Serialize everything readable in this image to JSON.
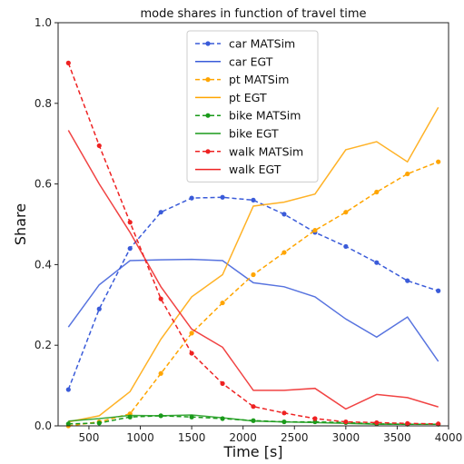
{
  "chart_data": {
    "type": "line",
    "title": "mode shares in function of travel time",
    "xlabel": "Time [s]",
    "ylabel": "Share",
    "xlim": [
      200,
      4000
    ],
    "ylim": [
      0,
      1.0
    ],
    "xticks": [
      500,
      1000,
      1500,
      2000,
      2500,
      3000,
      3500,
      4000
    ],
    "yticks": [
      0.0,
      0.2,
      0.4,
      0.6,
      0.8,
      1.0
    ],
    "x": [
      300,
      600,
      900,
      1200,
      1500,
      1800,
      2100,
      2400,
      2700,
      3000,
      3300,
      3600,
      3900
    ],
    "grid": false,
    "legend_position": "top-center",
    "series": [
      {
        "name": "car MATSim",
        "color": "#3a5bd9",
        "style": "dashed-markers",
        "values": [
          0.09,
          0.29,
          0.44,
          0.53,
          0.565,
          0.567,
          0.56,
          0.525,
          0.48,
          0.445,
          0.405,
          0.36,
          0.335
        ]
      },
      {
        "name": "car EGT",
        "color": "#3a5bd9",
        "style": "solid",
        "values": [
          0.245,
          0.35,
          0.41,
          0.412,
          0.413,
          0.41,
          0.355,
          0.345,
          0.32,
          0.265,
          0.22,
          0.27,
          0.16
        ]
      },
      {
        "name": "pt MATSim",
        "color": "#ffa500",
        "style": "dashed-markers",
        "values": [
          0.0,
          0.01,
          0.03,
          0.13,
          0.23,
          0.305,
          0.375,
          0.43,
          0.485,
          0.53,
          0.58,
          0.625,
          0.655
        ]
      },
      {
        "name": "pt EGT",
        "color": "#ffa500",
        "style": "solid",
        "values": [
          0.01,
          0.025,
          0.085,
          0.215,
          0.32,
          0.375,
          0.545,
          0.555,
          0.575,
          0.685,
          0.705,
          0.655,
          0.79
        ]
      },
      {
        "name": "bike MATSim",
        "color": "#1a9a1a",
        "style": "dashed-markers",
        "values": [
          0.005,
          0.007,
          0.022,
          0.025,
          0.022,
          0.018,
          0.013,
          0.01,
          0.01,
          0.008,
          0.005,
          0.004,
          0.004
        ]
      },
      {
        "name": "bike EGT",
        "color": "#1a9a1a",
        "style": "solid",
        "values": [
          0.012,
          0.018,
          0.026,
          0.025,
          0.027,
          0.02,
          0.012,
          0.01,
          0.008,
          0.006,
          0.004,
          0.004,
          0.004
        ]
      },
      {
        "name": "walk MATSim",
        "color": "#ee2222",
        "style": "dashed-markers",
        "values": [
          0.9,
          0.695,
          0.505,
          0.315,
          0.18,
          0.105,
          0.048,
          0.032,
          0.018,
          0.01,
          0.008,
          0.006,
          0.005
        ]
      },
      {
        "name": "walk EGT",
        "color": "#ee2222",
        "style": "solid",
        "values": [
          0.733,
          0.6,
          0.48,
          0.345,
          0.24,
          0.195,
          0.088,
          0.088,
          0.093,
          0.042,
          0.078,
          0.07,
          0.047
        ]
      }
    ]
  }
}
